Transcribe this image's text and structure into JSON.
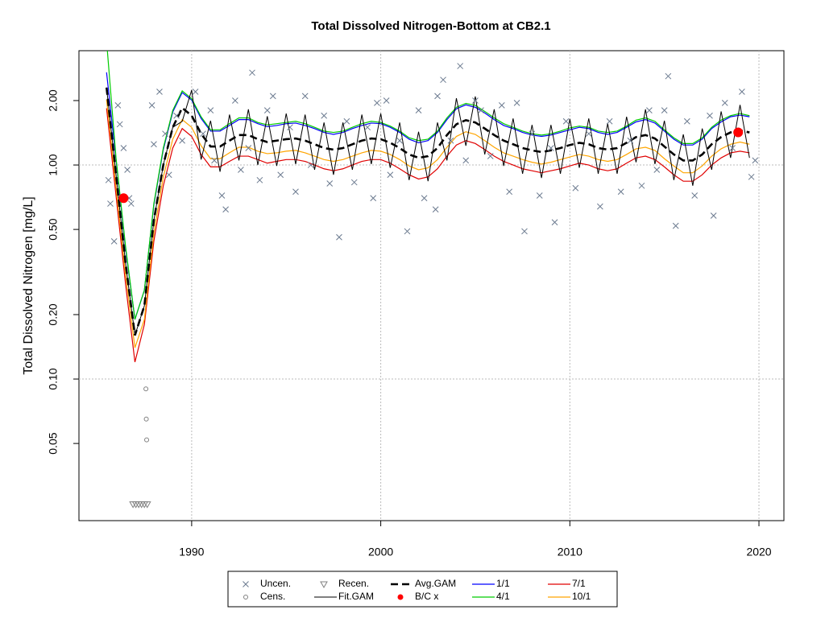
{
  "chart_data": {
    "type": "line",
    "title": "Total Dissolved Nitrogen-Bottom at CB2.1",
    "y_label": "Total Dissolved Nitrogen [mg/L]",
    "log_y": true,
    "xlim": [
      1984.04,
      2021.32
    ],
    "ylim": [
      0.0218,
      3.42
    ],
    "xticks": [
      1990,
      2000,
      2010,
      2020
    ],
    "yticks": [
      0.05,
      {
        "value": 0.1,
        "label": "0.10"
      },
      {
        "value": 0.2,
        "label": "0.20"
      },
      {
        "value": 0.5,
        "label": "0.50"
      },
      {
        "value": 1,
        "label": "1.00"
      },
      {
        "value": 2,
        "label": "2.00"
      }
    ],
    "x_grid": true,
    "y_grid": [
      0.1,
      1
    ],
    "legend": "bottom",
    "x": [
      1985.5,
      1986,
      1986.5,
      1987,
      1987.5,
      1988,
      1988.5,
      1989,
      1989.5,
      1990,
      1990.5,
      1991,
      1991.5,
      1992,
      1992.5,
      1993,
      1993.5,
      1994,
      1994.5,
      1995,
      1995.5,
      1996,
      1996.5,
      1997,
      1997.5,
      1998,
      1998.5,
      1999,
      1999.5,
      2000,
      2000.5,
      2001,
      2001.5,
      2002,
      2002.5,
      2003,
      2003.5,
      2004,
      2004.5,
      2005,
      2005.5,
      2006,
      2006.5,
      2007,
      2007.5,
      2008,
      2008.5,
      2009,
      2009.5,
      2010,
      2010.5,
      2011,
      2011.5,
      2012,
      2012.5,
      2013,
      2013.5,
      2014,
      2014.5,
      2015,
      2015.5,
      2016,
      2016.5,
      2017,
      2017.5,
      2018,
      2018.5,
      2019,
      2019.5
    ],
    "series": [
      {
        "name": "Uncen.",
        "color": "#6b7a8f",
        "marker": "x",
        "x": [
          1985.6,
          1985.7,
          1985.9,
          1986.1,
          1986.2,
          1986.4,
          1986.6,
          1986.7,
          1986.8,
          1987.9,
          1988.0,
          1988.3,
          1988.6,
          1988.8,
          1989.2,
          1989.5,
          1990.2,
          1990.6,
          1991.0,
          1991.2,
          1991.6,
          1991.8,
          1992.3,
          1992.6,
          1993.0,
          1993.2,
          1993.6,
          1994.0,
          1994.3,
          1994.7,
          1995.2,
          1995.5,
          1996.0,
          1996.3,
          1997.0,
          1997.3,
          1997.8,
          1998.2,
          1998.6,
          1999.3,
          1999.6,
          1999.8,
          2000.3,
          2000.5,
          2001.0,
          2001.4,
          2002.0,
          2002.3,
          2002.9,
          2003.0,
          2003.3,
          2003.7,
          2004.2,
          2004.5,
          2005.0,
          2005.3,
          2005.8,
          2006.4,
          2006.8,
          2007.2,
          2007.6,
          2008.0,
          2008.4,
          2009.0,
          2009.2,
          2009.8,
          2010.3,
          2011.0,
          2011.6,
          2012.1,
          2012.7,
          2013.2,
          2013.8,
          2014.2,
          2014.6,
          2015.0,
          2015.2,
          2015.6,
          2016.2,
          2016.6,
          2017.4,
          2017.6,
          2018.2,
          2018.6,
          2019.1,
          2019.6,
          2019.8
        ],
        "values": [
          0.85,
          0.66,
          0.44,
          1.9,
          1.55,
          1.2,
          0.95,
          0.7,
          0.66,
          1.9,
          1.25,
          2.2,
          1.4,
          0.9,
          1.7,
          1.3,
          2.2,
          1.4,
          1.8,
          1.05,
          0.72,
          0.62,
          2.0,
          0.95,
          1.2,
          2.7,
          0.85,
          1.8,
          2.1,
          0.9,
          1.5,
          0.75,
          2.1,
          1.0,
          1.7,
          0.82,
          0.46,
          1.6,
          0.83,
          1.5,
          0.7,
          1.95,
          2.0,
          0.9,
          1.3,
          0.49,
          1.8,
          0.7,
          0.62,
          2.1,
          2.5,
          1.3,
          2.9,
          1.05,
          2.0,
          1.8,
          1.1,
          1.9,
          0.75,
          1.95,
          0.49,
          1.4,
          0.72,
          1.2,
          0.54,
          1.6,
          0.78,
          1.4,
          0.64,
          1.6,
          0.75,
          1.3,
          0.8,
          1.8,
          0.95,
          1.8,
          2.6,
          0.52,
          1.6,
          0.72,
          1.7,
          0.58,
          1.95,
          1.2,
          2.2,
          0.88,
          1.05
        ]
      },
      {
        "name": "Cens.",
        "color": "#808080",
        "marker": "circle",
        "x": [
          1987.58,
          1987.6,
          1987.62
        ],
        "values": [
          0.09,
          0.065,
          0.052
        ]
      },
      {
        "name": "Recen.",
        "color": "#808080",
        "marker": "triangle",
        "x": [
          1986.9,
          1987.05,
          1987.2,
          1987.35,
          1987.5,
          1987.65
        ],
        "values": [
          0.026,
          0.026,
          0.026,
          0.026,
          0.026,
          0.026
        ]
      },
      {
        "name": "Fit.GAM",
        "color": "#000000",
        "line": "solid",
        "values": [
          2.3,
          0.9,
          0.35,
          0.16,
          0.22,
          0.55,
          1.0,
          1.5,
          1.6,
          2.24,
          1.06,
          1.61,
          0.93,
          1.72,
          1.05,
          1.82,
          1.0,
          1.69,
          0.99,
          1.74,
          1.01,
          1.72,
          0.95,
          1.58,
          0.9,
          1.58,
          0.95,
          1.72,
          1.01,
          1.74,
          0.97,
          1.58,
          0.85,
          1.43,
          0.84,
          1.58,
          1.05,
          2.05,
          1.23,
          2.09,
          1.12,
          1.82,
          0.99,
          1.65,
          0.91,
          1.54,
          0.87,
          1.54,
          0.91,
          1.64,
          0.97,
          1.65,
          0.91,
          1.56,
          0.91,
          1.68,
          1.03,
          1.82,
          1.01,
          1.61,
          0.85,
          1.39,
          0.8,
          1.48,
          0.95,
          1.78,
          1.08,
          1.91,
          1.08
        ]
      },
      {
        "name": "Avg.GAM",
        "color": "#000000",
        "line": "dashed",
        "values": [
          2.3,
          0.9,
          0.35,
          0.16,
          0.22,
          0.55,
          1.0,
          1.5,
          1.85,
          1.7,
          1.4,
          1.22,
          1.22,
          1.3,
          1.38,
          1.38,
          1.32,
          1.28,
          1.3,
          1.32,
          1.33,
          1.3,
          1.25,
          1.2,
          1.18,
          1.2,
          1.25,
          1.3,
          1.33,
          1.32,
          1.27,
          1.2,
          1.12,
          1.08,
          1.1,
          1.2,
          1.38,
          1.55,
          1.62,
          1.58,
          1.48,
          1.38,
          1.3,
          1.25,
          1.2,
          1.17,
          1.15,
          1.17,
          1.2,
          1.24,
          1.27,
          1.25,
          1.2,
          1.18,
          1.2,
          1.27,
          1.35,
          1.38,
          1.33,
          1.22,
          1.12,
          1.05,
          1.05,
          1.12,
          1.25,
          1.35,
          1.42,
          1.45,
          1.42
        ]
      },
      {
        "name": "B/C x",
        "color": "#ff0000",
        "marker": "dot",
        "x": [
          1986.4,
          2018.9
        ],
        "values": [
          0.7,
          1.42
        ]
      },
      {
        "name": "1/1",
        "color": "#0000ff",
        "line": "solid",
        "values": [
          2.71,
          1.06,
          0.41,
          0.19,
          0.26,
          0.65,
          1.18,
          1.77,
          2.18,
          2.01,
          1.65,
          1.44,
          1.44,
          1.53,
          1.63,
          1.63,
          1.56,
          1.51,
          1.53,
          1.56,
          1.57,
          1.53,
          1.48,
          1.42,
          1.39,
          1.42,
          1.48,
          1.53,
          1.57,
          1.56,
          1.5,
          1.42,
          1.32,
          1.27,
          1.3,
          1.42,
          1.63,
          1.83,
          1.91,
          1.86,
          1.75,
          1.63,
          1.53,
          1.48,
          1.42,
          1.38,
          1.36,
          1.38,
          1.42,
          1.46,
          1.5,
          1.48,
          1.42,
          1.39,
          1.42,
          1.5,
          1.59,
          1.63,
          1.57,
          1.44,
          1.32,
          1.24,
          1.24,
          1.32,
          1.48,
          1.59,
          1.68,
          1.71,
          1.68
        ]
      },
      {
        "name": "4/1",
        "color": "#00cc00",
        "line": "solid",
        "values": [
          3.8,
          1.08,
          0.42,
          0.19,
          0.26,
          0.66,
          1.2,
          1.8,
          2.22,
          2.04,
          1.68,
          1.46,
          1.46,
          1.56,
          1.66,
          1.66,
          1.58,
          1.54,
          1.56,
          1.58,
          1.6,
          1.56,
          1.5,
          1.44,
          1.42,
          1.44,
          1.5,
          1.56,
          1.6,
          1.58,
          1.52,
          1.44,
          1.34,
          1.3,
          1.32,
          1.44,
          1.66,
          1.86,
          1.94,
          1.9,
          1.78,
          1.66,
          1.56,
          1.5,
          1.44,
          1.4,
          1.38,
          1.4,
          1.44,
          1.49,
          1.52,
          1.5,
          1.44,
          1.42,
          1.44,
          1.52,
          1.62,
          1.66,
          1.6,
          1.46,
          1.34,
          1.26,
          1.26,
          1.34,
          1.5,
          1.62,
          1.7,
          1.74,
          1.7
        ]
      },
      {
        "name": "7/1",
        "color": "#e00000",
        "line": "solid",
        "values": [
          1.84,
          0.72,
          0.28,
          0.12,
          0.18,
          0.44,
          0.8,
          1.2,
          1.48,
          1.36,
          1.12,
          0.98,
          0.98,
          1.04,
          1.1,
          1.1,
          1.06,
          1.02,
          1.04,
          1.06,
          1.06,
          1.04,
          1.0,
          0.96,
          0.94,
          0.96,
          1.0,
          1.04,
          1.06,
          1.06,
          1.02,
          0.96,
          0.9,
          0.86,
          0.88,
          0.96,
          1.1,
          1.24,
          1.3,
          1.26,
          1.18,
          1.1,
          1.04,
          1.0,
          0.96,
          0.94,
          0.92,
          0.94,
          0.96,
          0.99,
          1.02,
          1.0,
          0.96,
          0.94,
          0.96,
          1.02,
          1.08,
          1.1,
          1.06,
          0.98,
          0.9,
          0.84,
          0.84,
          0.9,
          1.0,
          1.08,
          1.14,
          1.16,
          1.14
        ]
      },
      {
        "name": "10/1",
        "color": "#ffa500",
        "line": "solid",
        "values": [
          2.02,
          0.79,
          0.31,
          0.14,
          0.19,
          0.48,
          0.88,
          1.32,
          1.63,
          1.5,
          1.23,
          1.07,
          1.07,
          1.14,
          1.21,
          1.21,
          1.16,
          1.13,
          1.14,
          1.16,
          1.17,
          1.14,
          1.1,
          1.06,
          1.04,
          1.06,
          1.1,
          1.14,
          1.17,
          1.16,
          1.12,
          1.06,
          0.99,
          0.95,
          0.97,
          1.06,
          1.21,
          1.36,
          1.43,
          1.39,
          1.3,
          1.21,
          1.14,
          1.1,
          1.06,
          1.03,
          1.01,
          1.03,
          1.06,
          1.09,
          1.12,
          1.1,
          1.06,
          1.04,
          1.06,
          1.12,
          1.19,
          1.21,
          1.17,
          1.07,
          0.99,
          0.92,
          0.92,
          0.99,
          1.1,
          1.19,
          1.25,
          1.28,
          1.25
        ]
      }
    ]
  }
}
